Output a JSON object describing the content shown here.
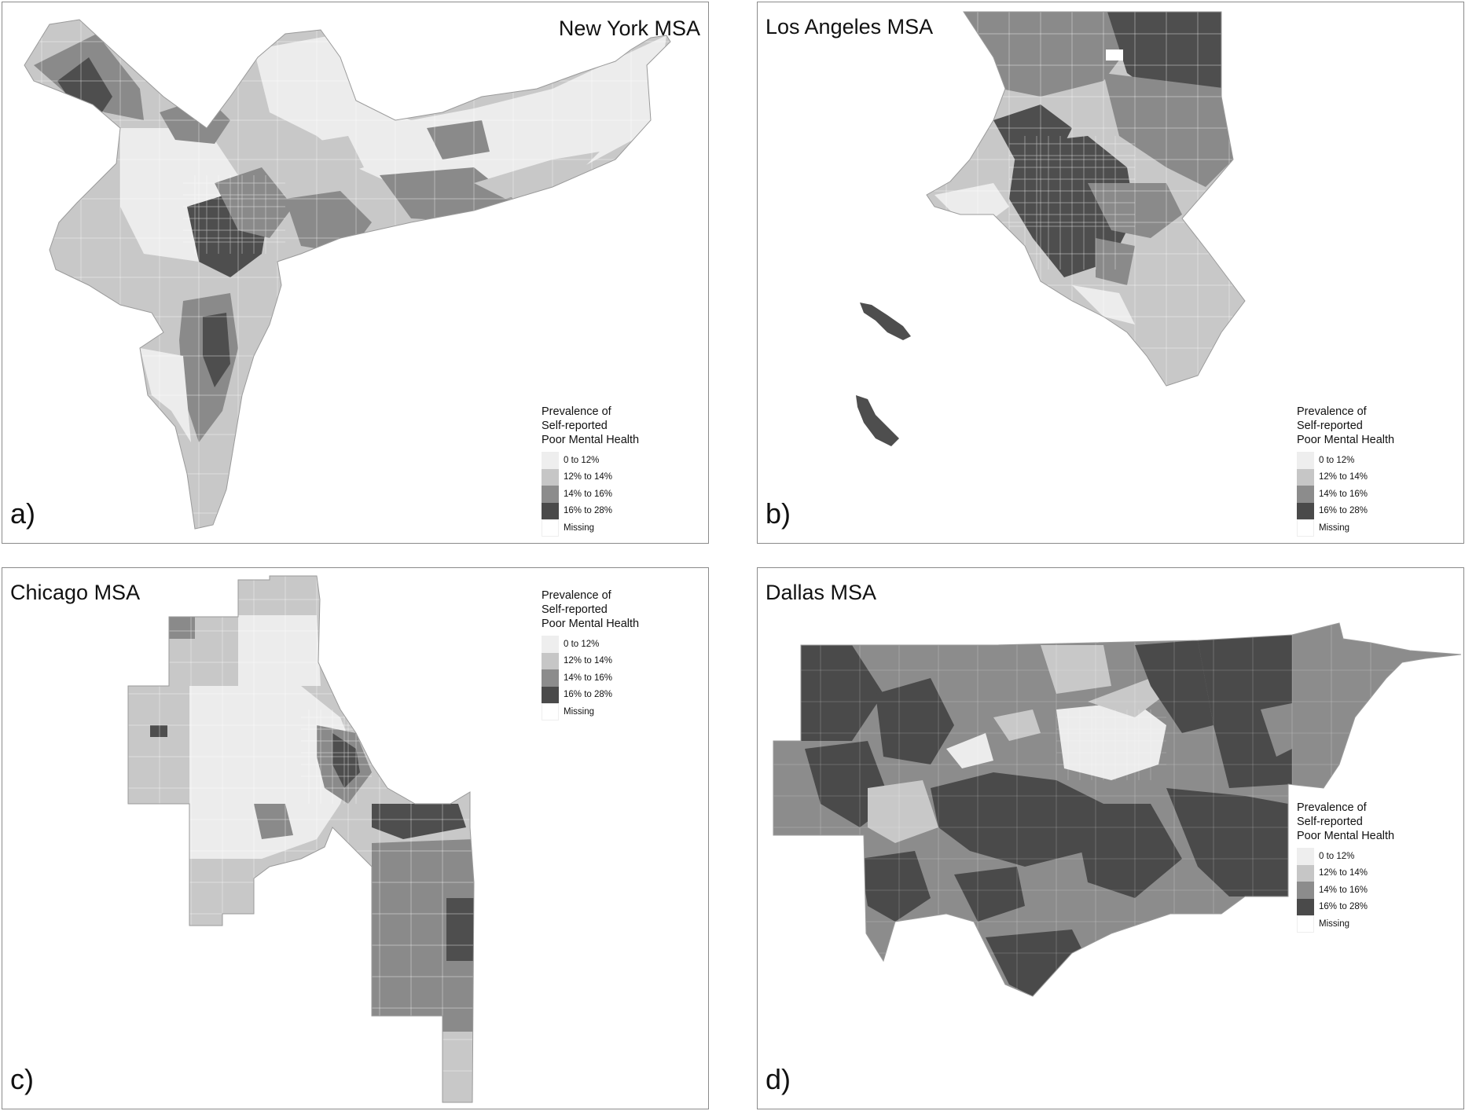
{
  "legend": {
    "title_lines": [
      "Prevalence of",
      "Self-reported",
      "Poor Mental Health"
    ],
    "classes": [
      {
        "label": "0 to 12%",
        "color": "#eeeeee"
      },
      {
        "label": "12% to 14%",
        "color": "#c6c6c6"
      },
      {
        "label": "14% to 16%",
        "color": "#8c8c8c"
      },
      {
        "label": "16% to 28%",
        "color": "#4a4a4a"
      },
      {
        "label": "Missing",
        "color": "#ffffff"
      }
    ]
  },
  "panels": [
    {
      "title": "New York MSA",
      "tag": "a)"
    },
    {
      "title": "Los Angeles MSA",
      "tag": "b)"
    },
    {
      "title": "Chicago MSA",
      "tag": "c)"
    },
    {
      "title": "Dallas MSA",
      "tag": "d)"
    }
  ]
}
